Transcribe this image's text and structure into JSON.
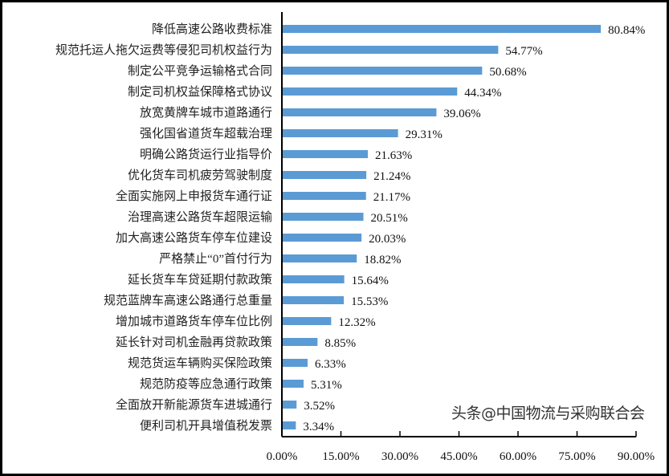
{
  "chart_data": {
    "type": "bar",
    "orientation": "horizontal",
    "title": "",
    "xlabel": "",
    "ylabel": "",
    "categories": [
      "降低高速公路收费标准",
      "规范托运人拖欠运费等侵犯司机权益行为",
      "制定公平竞争运输格式合同",
      "制定司机权益保障格式协议",
      "放宽黄牌车城市道路通行",
      "强化国省道货车超载治理",
      "明确公路货运行业指导价",
      "优化货车司机疲劳驾驶制度",
      "全面实施网上申报货车通行证",
      "治理高速公路货车超限运输",
      "加大高速公路货车停车位建设",
      "严格禁止“0”首付行为",
      "延长货车车贷延期付款政策",
      "规范蓝牌车高速公路通行总重量",
      "增加城市道路货车停车位比例",
      "延长针对司机金融再贷款政策",
      "规范货运车辆购买保险政策",
      "规范防疫等应急通行政策",
      "全面放开新能源货车进城通行",
      "便利司机开具增值税发票"
    ],
    "values": [
      80.84,
      54.77,
      50.68,
      44.34,
      39.06,
      29.31,
      21.63,
      21.24,
      21.17,
      20.51,
      20.03,
      18.82,
      15.64,
      15.53,
      12.32,
      8.85,
      6.33,
      5.31,
      3.52,
      3.34
    ],
    "value_labels": [
      "80.84%",
      "54.77%",
      "50.68%",
      "44.34%",
      "39.06%",
      "29.31%",
      "21.63%",
      "21.24%",
      "21.17%",
      "20.51%",
      "20.03%",
      "18.82%",
      "15.64%",
      "15.53%",
      "12.32%",
      "8.85%",
      "6.33%",
      "5.31%",
      "3.52%",
      "3.34%"
    ],
    "xlim": [
      0,
      90
    ],
    "xticks": [
      "0.00%",
      "15.00%",
      "30.00%",
      "45.00%",
      "60.00%",
      "75.00%",
      "90.00%"
    ],
    "grid": false,
    "legend": "none",
    "bar_color": "#5b9bd5"
  },
  "watermark": "头条@中国物流与采购联合会"
}
